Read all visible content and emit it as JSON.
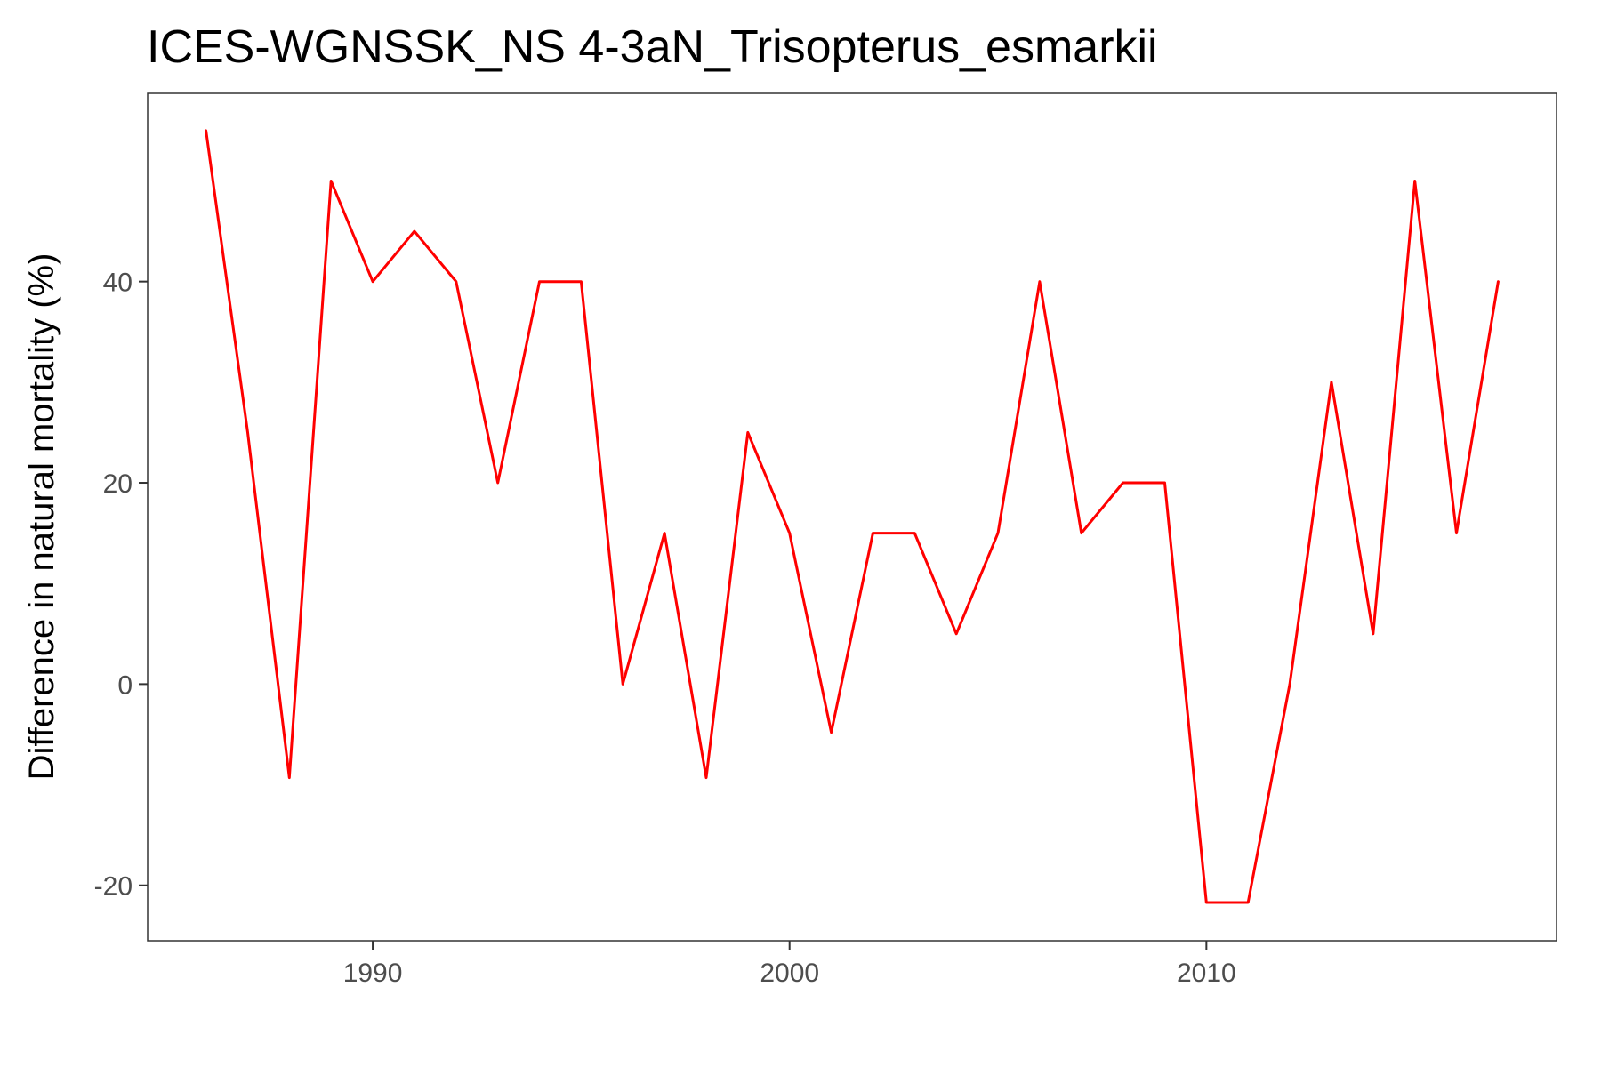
{
  "chart_data": {
    "type": "line",
    "title": "ICES-WGNSSK_NS 4-3aN_Trisopterus_esmarkii",
    "xlabel": "",
    "ylabel": "Difference in natural mortality (%)",
    "xlim": [
      1984.6,
      2018.4
    ],
    "ylim": [
      -25.5,
      58.7
    ],
    "x_ticks": [
      1990,
      2000,
      2010
    ],
    "y_ticks": [
      -20,
      0,
      20,
      40
    ],
    "grid": false,
    "legend": "none",
    "series": [
      {
        "color": "#ff0000",
        "x": [
          1986,
          1987,
          1988,
          1989,
          1990,
          1991,
          1992,
          1993,
          1994,
          1995,
          1996,
          1997,
          1998,
          1999,
          2000,
          2001,
          2002,
          2003,
          2004,
          2005,
          2006,
          2007,
          2008,
          2009,
          2010,
          2011,
          2012,
          2013,
          2014,
          2015,
          2016,
          2017
        ],
        "y": [
          55,
          25,
          -9.3,
          50,
          40,
          45,
          40,
          20,
          40,
          40,
          0,
          15,
          -9.3,
          25,
          15,
          -4.8,
          15,
          15,
          5,
          15,
          40,
          15,
          20,
          20,
          -21.7,
          -21.7,
          0,
          30,
          5,
          50,
          15,
          40
        ]
      }
    ]
  }
}
